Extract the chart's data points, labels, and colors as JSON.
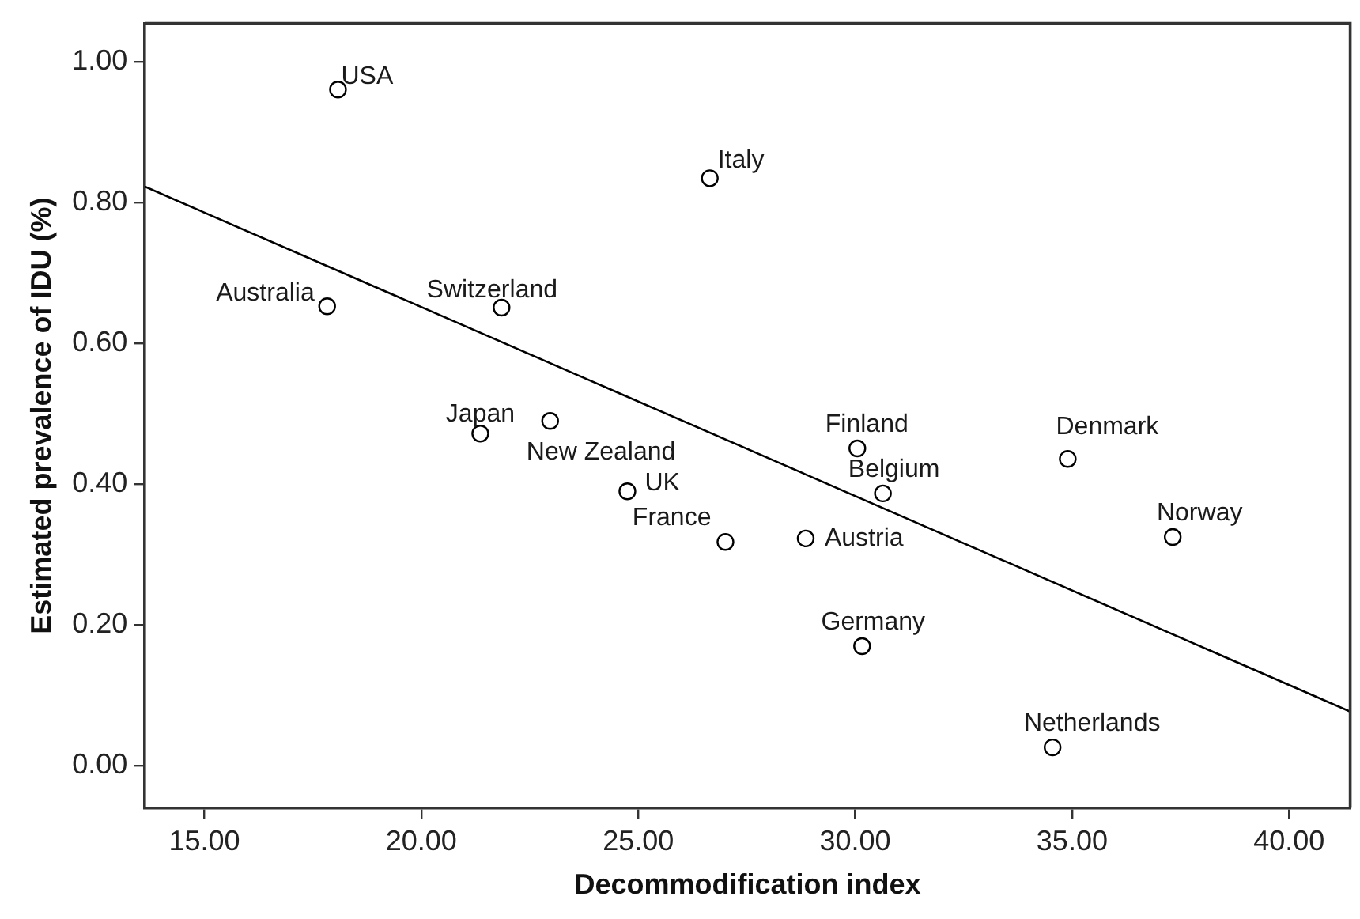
{
  "chart_data": {
    "type": "scatter",
    "xlabel": "Decommodification index",
    "ylabel": "Estimated prevalence of IDU (%)",
    "xlim": [
      13.63,
      41.41
    ],
    "ylim": [
      -0.06,
      1.055
    ],
    "xticks": [
      {
        "value": 15,
        "label": "15.00"
      },
      {
        "value": 20,
        "label": "20.00"
      },
      {
        "value": 25,
        "label": "25.00"
      },
      {
        "value": 30,
        "label": "30.00"
      },
      {
        "value": 35,
        "label": "35.00"
      },
      {
        "value": 40,
        "label": "40.00"
      }
    ],
    "yticks": [
      {
        "value": 0,
        "label": "0.00"
      },
      {
        "value": 0.2,
        "label": "0.20"
      },
      {
        "value": 0.4,
        "label": "0.40"
      },
      {
        "value": 0.6,
        "label": "0.60"
      },
      {
        "value": 0.8,
        "label": "0.80"
      },
      {
        "value": 1,
        "label": "1.00"
      }
    ],
    "grid": false,
    "legend": false,
    "marker": "circle",
    "series": [
      {
        "color": "#000000",
        "x": [
          18.08,
          17.83,
          21.85,
          21.36,
          22.97,
          24.75,
          26.65,
          27.01,
          28.86,
          30.05,
          30.64,
          30.16,
          34.9,
          37.32,
          34.55
        ],
        "values": [
          0.961,
          0.653,
          0.651,
          0.472,
          0.49,
          0.39,
          0.835,
          0.318,
          0.323,
          0.451,
          0.387,
          0.17,
          0.436,
          0.325,
          0.026
        ]
      },
      {
        "type": "line",
        "marker": "none",
        "color": "#000000",
        "x": [
          13.63,
          41.41
        ],
        "values": [
          0.823,
          0.077
        ]
      }
    ],
    "annotations": [
      {
        "text": "USA",
        "x": 18.08,
        "y": 0.961
      },
      {
        "text": "Australia",
        "x": 17.83,
        "y": 0.653
      },
      {
        "text": "Switzerland",
        "x": 21.85,
        "y": 0.651
      },
      {
        "text": "Japan",
        "x": 21.36,
        "y": 0.472
      },
      {
        "text": "New Zealand",
        "x": 22.97,
        "y": 0.49
      },
      {
        "text": "UK",
        "x": 24.75,
        "y": 0.39
      },
      {
        "text": "Italy",
        "x": 26.65,
        "y": 0.835
      },
      {
        "text": "France",
        "x": 27.01,
        "y": 0.318
      },
      {
        "text": "Austria",
        "x": 28.86,
        "y": 0.323
      },
      {
        "text": "Finland",
        "x": 30.05,
        "y": 0.451
      },
      {
        "text": "Belgium",
        "x": 30.64,
        "y": 0.387
      },
      {
        "text": "Germany",
        "x": 30.16,
        "y": 0.17
      },
      {
        "text": "Denmark",
        "x": 34.9,
        "y": 0.436
      },
      {
        "text": "Norway",
        "x": 37.32,
        "y": 0.325
      },
      {
        "text": "Netherlands",
        "x": 34.55,
        "y": 0.026
      }
    ]
  }
}
